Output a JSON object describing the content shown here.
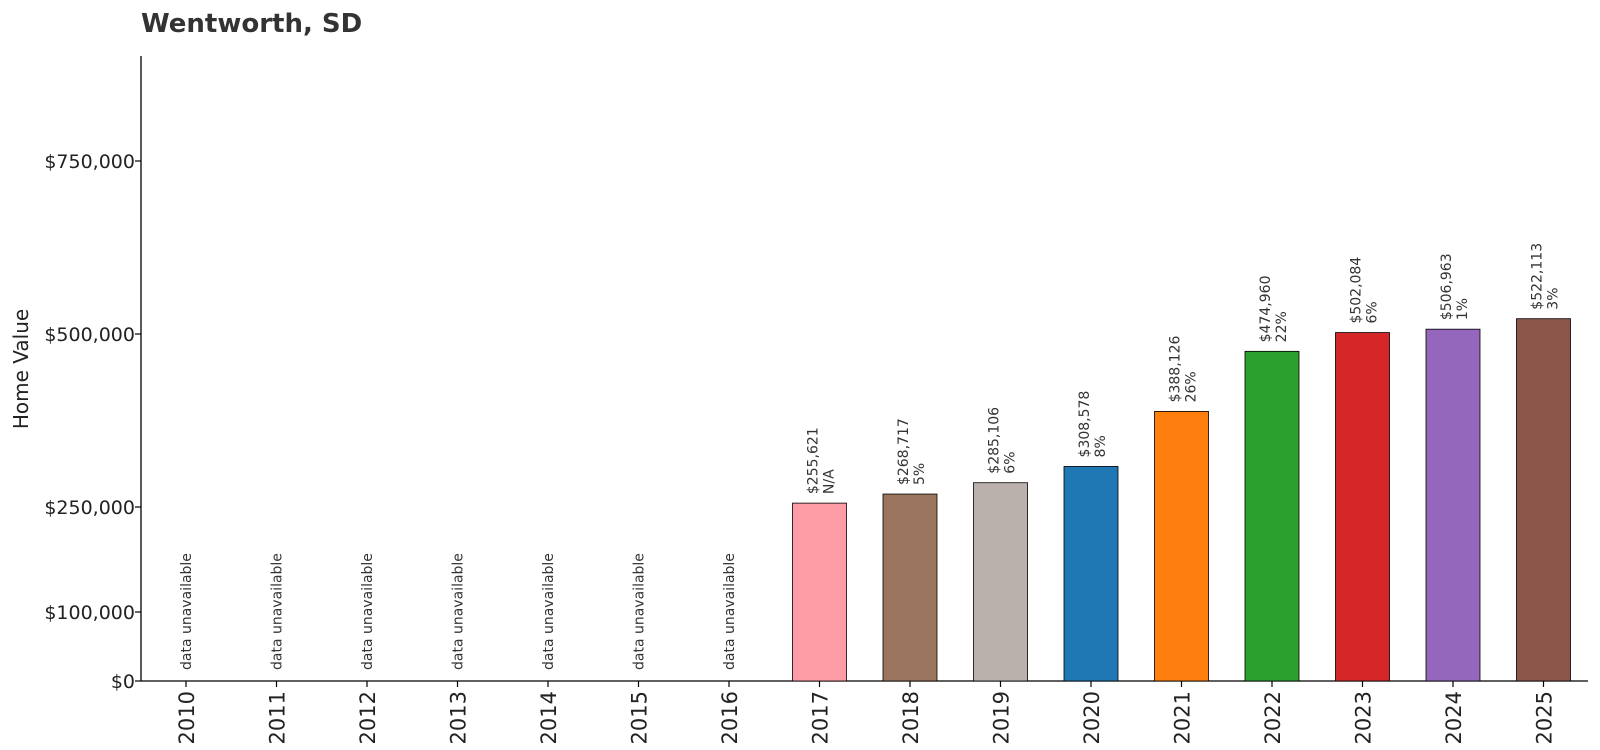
{
  "chart_data": {
    "type": "bar",
    "title": "Wentworth, SD",
    "xlabel": "",
    "ylabel": "Home Value",
    "ylim": [
      0,
      900000
    ],
    "yticks": [
      {
        "value": 0,
        "label": "$0"
      },
      {
        "value": 100000,
        "label": "$100,000"
      },
      {
        "value": 250000,
        "label": "$250,000"
      },
      {
        "value": 500000,
        "label": "$500,000"
      },
      {
        "value": 750000,
        "label": "$750,000"
      }
    ],
    "unavailable_label": "data unavailable",
    "points": [
      {
        "year": "2010",
        "value": null,
        "value_label": "",
        "change_label": "",
        "color": ""
      },
      {
        "year": "2011",
        "value": null,
        "value_label": "",
        "change_label": "",
        "color": ""
      },
      {
        "year": "2012",
        "value": null,
        "value_label": "",
        "change_label": "",
        "color": ""
      },
      {
        "year": "2013",
        "value": null,
        "value_label": "",
        "change_label": "",
        "color": ""
      },
      {
        "year": "2014",
        "value": null,
        "value_label": "",
        "change_label": "",
        "color": ""
      },
      {
        "year": "2015",
        "value": null,
        "value_label": "",
        "change_label": "",
        "color": ""
      },
      {
        "year": "2016",
        "value": null,
        "value_label": "",
        "change_label": "",
        "color": ""
      },
      {
        "year": "2017",
        "value": 255621,
        "value_label": "$255,621",
        "change_label": "N/A",
        "color": "#ff9da7"
      },
      {
        "year": "2018",
        "value": 268717,
        "value_label": "$268,717",
        "change_label": "5%",
        "color": "#9c755f"
      },
      {
        "year": "2019",
        "value": 285106,
        "value_label": "$285,106",
        "change_label": "6%",
        "color": "#bab0ac"
      },
      {
        "year": "2020",
        "value": 308578,
        "value_label": "$308,578",
        "change_label": "8%",
        "color": "#1f77b4"
      },
      {
        "year": "2021",
        "value": 388126,
        "value_label": "$388,126",
        "change_label": "26%",
        "color": "#ff7f0e"
      },
      {
        "year": "2022",
        "value": 474960,
        "value_label": "$474,960",
        "change_label": "22%",
        "color": "#2ca02c"
      },
      {
        "year": "2023",
        "value": 502084,
        "value_label": "$502,084",
        "change_label": "6%",
        "color": "#d62728"
      },
      {
        "year": "2024",
        "value": 506963,
        "value_label": "$506,963",
        "change_label": "1%",
        "color": "#9467bd"
      },
      {
        "year": "2025",
        "value": 522113,
        "value_label": "$522,113",
        "change_label": "3%",
        "color": "#8c564b"
      }
    ]
  }
}
